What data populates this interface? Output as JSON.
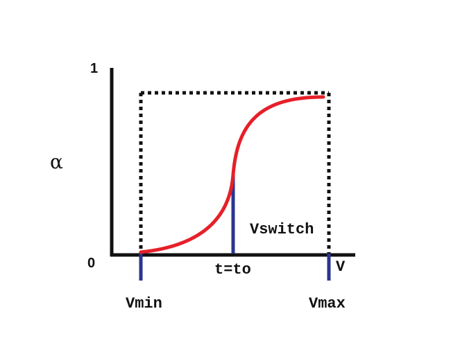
{
  "diagram": {
    "labels": {
      "y_axis_symbol": "α",
      "y_max": "1",
      "y_min": "0",
      "x_axis_symbol": "V",
      "vswitch": "Vswitch",
      "t_to": "t=to",
      "vmin": "Vmin",
      "vmax": "Vmax"
    },
    "colors": {
      "axis": "#111111",
      "curve": "#e5202a",
      "markers": "#2a3590",
      "bound_box": "#111111"
    }
  }
}
